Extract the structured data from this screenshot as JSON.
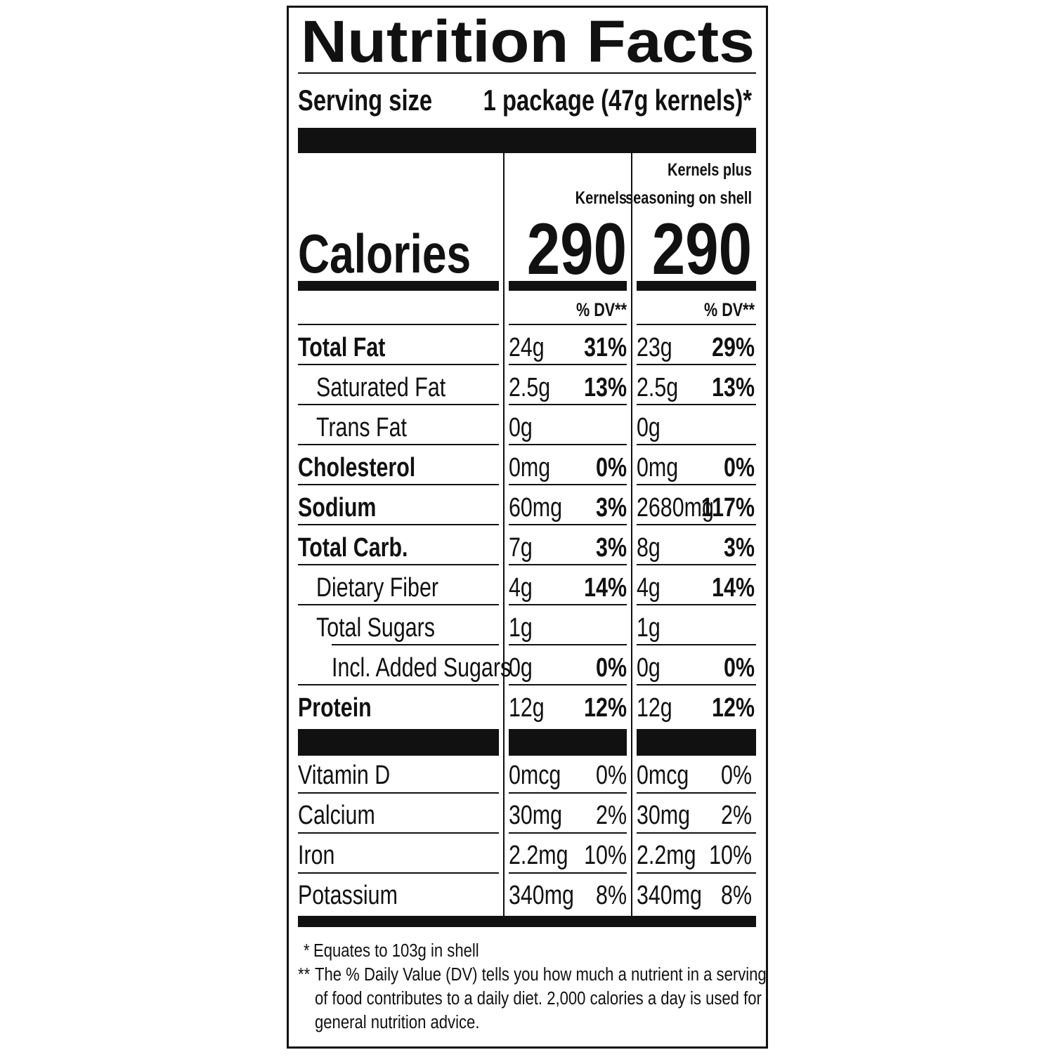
{
  "header": {
    "title": "Nutrition Facts",
    "serving_label": "Serving size",
    "serving_value": "1 package (47g kernels)*"
  },
  "calories_label": "Calories",
  "columns": [
    {
      "name_lines": [
        "Kernels"
      ],
      "calories": "290",
      "dv_header": "% DV**"
    },
    {
      "name_lines": [
        "Kernels plus",
        "seasoning on shell"
      ],
      "calories": "290",
      "dv_header": "% DV**"
    }
  ],
  "nutrients": [
    {
      "name": "Total Fat",
      "bold": true,
      "indent": 0,
      "values": [
        [
          "24g",
          "31%"
        ],
        [
          "23g",
          "29%"
        ]
      ]
    },
    {
      "name": "Saturated Fat",
      "bold": false,
      "indent": 1,
      "values": [
        [
          "2.5g",
          "13%"
        ],
        [
          "2.5g",
          "13%"
        ]
      ]
    },
    {
      "name": "Trans Fat",
      "bold": false,
      "indent": 1,
      "values": [
        [
          "0g"
        ],
        [
          "0g"
        ]
      ]
    },
    {
      "name": "Cholesterol",
      "bold": true,
      "indent": 0,
      "values": [
        [
          "0mg",
          "0%"
        ],
        [
          "0mg",
          "0%"
        ]
      ]
    },
    {
      "name": "Sodium",
      "bold": true,
      "indent": 0,
      "values": [
        [
          "60mg",
          "3%"
        ],
        [
          "2680mg",
          "117%"
        ]
      ]
    },
    {
      "name": "Total Carb.",
      "bold": true,
      "indent": 0,
      "values": [
        [
          "7g",
          "3%"
        ],
        [
          "8g",
          "3%"
        ]
      ]
    },
    {
      "name": "Dietary Fiber",
      "bold": false,
      "indent": 1,
      "values": [
        [
          "4g",
          "14%"
        ],
        [
          "4g",
          "14%"
        ]
      ]
    },
    {
      "name": "Total Sugars",
      "bold": false,
      "indent": 1,
      "values": [
        [
          "1g"
        ],
        [
          "1g"
        ]
      ]
    },
    {
      "name": "Incl. Added Sugars",
      "bold": false,
      "indent": 2,
      "values": [
        [
          "0g",
          "0%"
        ],
        [
          "0g",
          "0%"
        ]
      ]
    },
    {
      "name": "Protein",
      "bold": true,
      "indent": 0,
      "values": [
        [
          "12g",
          "12%"
        ],
        [
          "12g",
          "12%"
        ]
      ]
    }
  ],
  "vitamins": [
    {
      "name": "Vitamin D",
      "values": [
        [
          "0mcg",
          "0%"
        ],
        [
          "0mcg",
          "0%"
        ]
      ]
    },
    {
      "name": "Calcium",
      "values": [
        [
          "30mg",
          "2%"
        ],
        [
          "30mg",
          "2%"
        ]
      ]
    },
    {
      "name": "Iron",
      "values": [
        [
          "2.2mg",
          "10%"
        ],
        [
          "2.2mg",
          "10%"
        ]
      ]
    },
    {
      "name": "Potassium",
      "values": [
        [
          "340mg",
          "8%"
        ],
        [
          "340mg",
          "8%"
        ]
      ]
    }
  ],
  "footnotes": [
    {
      "mark": "*",
      "lines": [
        "Equates to 103g in shell"
      ]
    },
    {
      "mark": "**",
      "lines": [
        "The % Daily Value (DV) tells you how much a nutrient in a serving",
        "of food contributes to a daily diet. 2,000 calories a day is used for",
        "general nutrition advice."
      ]
    }
  ]
}
